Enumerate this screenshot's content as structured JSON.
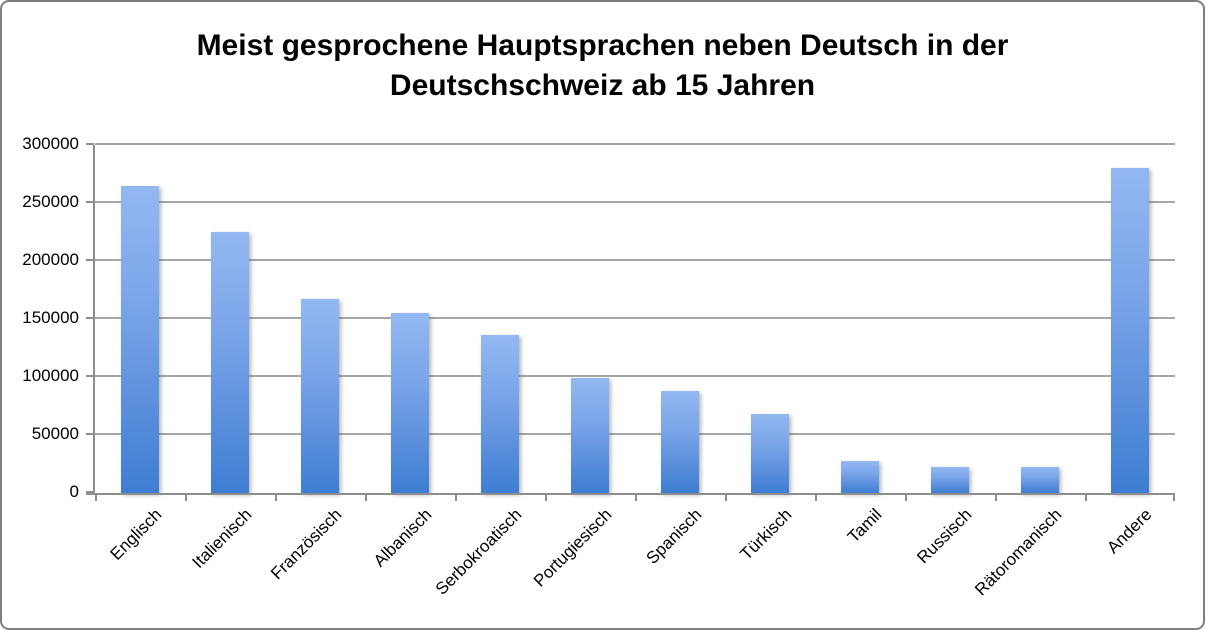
{
  "title_lines": [
    "Meist gesprochene Hauptsprachen neben Deutsch in der",
    "Deutschschweiz ab 15 Jahren"
  ],
  "chart_data": {
    "type": "bar",
    "title": "Meist gesprochene Hauptsprachen neben Deutsch in der Deutschschweiz ab 15 Jahren",
    "categories": [
      "Englisch",
      "Italienisch",
      "Französisch",
      "Albanisch",
      "Serbokroatisch",
      "Portugiesisch",
      "Spanisch",
      "Türkisch",
      "Tamil",
      "Russisch",
      "Rätoromanisch",
      "Andere"
    ],
    "values": [
      265000,
      225000,
      167000,
      155000,
      136000,
      99000,
      88000,
      68000,
      28000,
      22000,
      22000,
      280000
    ],
    "xlabel": "",
    "ylabel": "",
    "ylim": [
      0,
      300000
    ],
    "ytick_interval": 50000,
    "ytick_labels": [
      "0",
      "50000",
      "100000",
      "150000",
      "200000",
      "250000",
      "300000"
    ],
    "grid": true,
    "legend_position": "none",
    "bar_color_top": "#93b8f1",
    "bar_color_bottom": "#3e7ed2"
  },
  "colors": {
    "background": "#ffffff",
    "frame_border": "#7f7f7f",
    "gridline": "#a6a6a6",
    "axis": "#8e8e8e",
    "text": "#000000"
  }
}
